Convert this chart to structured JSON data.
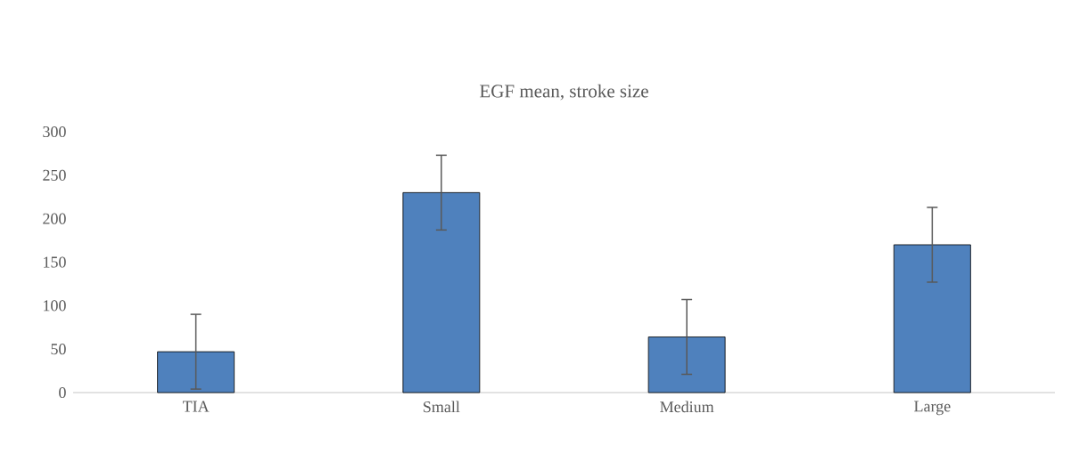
{
  "chart_data": {
    "type": "bar",
    "title": "EGF mean, stroke size",
    "categories": [
      "TIA",
      "Small",
      "Medium",
      "Large"
    ],
    "values": [
      47,
      230,
      64,
      170
    ],
    "errors": [
      43,
      43,
      43,
      43
    ],
    "color": "#4f81bd",
    "ylim": [
      0,
      300
    ],
    "yticks": [
      0,
      50,
      100,
      150,
      200,
      250,
      300
    ]
  }
}
